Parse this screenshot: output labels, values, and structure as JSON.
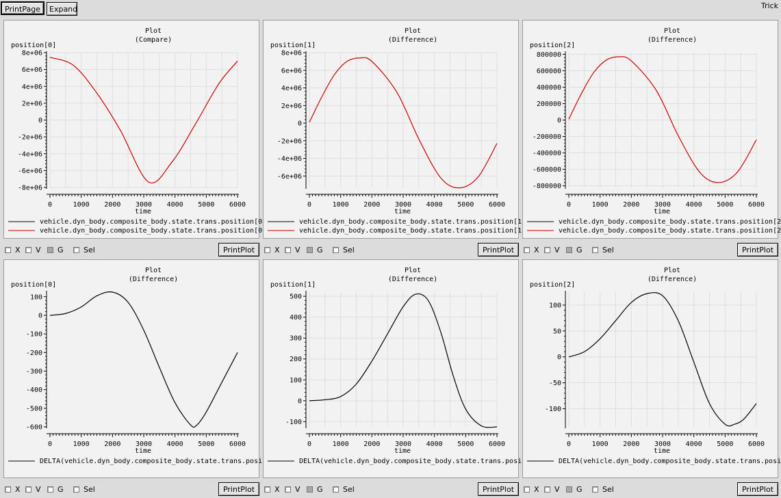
{
  "toolbar": {
    "print_page": "PrintPage",
    "expand": "Expand",
    "app_title": "Trick"
  },
  "controls": {
    "x": "X",
    "v": "V",
    "g": "G",
    "sel": "Sel",
    "print_plot": "PrintPlot"
  },
  "plots": [
    {
      "title": "Plot",
      "subtitle": "(Compare)",
      "ylabel": "position[0]",
      "xlabel": "time",
      "xlim": [
        0,
        6000
      ],
      "ylim": [
        -8000000,
        8000000
      ],
      "yticks": [
        -8000000,
        -6000000,
        -4000000,
        -2000000,
        0,
        2000000,
        4000000,
        6000000,
        8000000
      ],
      "ytick_labels": [
        "-8e+06",
        "-6e+06",
        "-4e+06",
        "-2e+06",
        "0",
        "2e+06",
        "4e+06",
        "6e+06",
        "8e+06"
      ],
      "legend": [
        {
          "label": "vehicle.dyn_body.composite_body.state.trans.position[0",
          "color": "#000000"
        },
        {
          "label": "vehicle.dyn_body.composite_body.state.trans.position[0",
          "color": "#cc0000"
        }
      ],
      "checks": {
        "x": false,
        "v": false,
        "g": true,
        "sel": false
      },
      "chart_data": {
        "type": "line",
        "x": [
          0,
          750,
          1500,
          2250,
          3150,
          3900,
          4650,
          5400,
          6000
        ],
        "series": [
          {
            "name": "vehicle.dyn_body.composite_body.state.trans.position[0",
            "color": "#cc0000",
            "values": [
              7450000,
              6500000,
              3200000,
              -1200000,
              -7350000,
              -5000000,
              -500000,
              4300000,
              7000000
            ]
          }
        ]
      }
    },
    {
      "title": "Plot",
      "subtitle": "(Difference)",
      "ylabel": "position[1]",
      "xlabel": "time",
      "xlim": [
        0,
        6000
      ],
      "ylim": [
        -7300000,
        8000000
      ],
      "yticks": [
        -6000000,
        -4000000,
        -2000000,
        0,
        2000000,
        4000000,
        6000000,
        8000000
      ],
      "ytick_labels": [
        "-6e+06",
        "-4e+06",
        "-2e+06",
        "0",
        "2e+06",
        "4e+06",
        "6e+06",
        "8e+06"
      ],
      "legend": [
        {
          "label": "vehicle.dyn_body.composite_body.state.trans.position[1",
          "color": "#000000"
        },
        {
          "label": "vehicle.dyn_body.composite_body.state.trans.position[1",
          "color": "#cc0000"
        }
      ],
      "checks": {
        "x": false,
        "v": false,
        "g": true,
        "sel": false
      },
      "chart_data": {
        "type": "line",
        "x": [
          0,
          400,
          800,
          1200,
          1600,
          2000,
          2800,
          3500,
          4200,
          4800,
          5400,
          6000
        ],
        "series": [
          {
            "name": "vehicle.dyn_body.composite_body.state.trans.position[1",
            "color": "#cc0000",
            "values": [
              100000,
              3000000,
              5500000,
              7000000,
              7400000,
              7000000,
              3500000,
              -1800000,
              -6200000,
              -7350000,
              -6100000,
              -2300000
            ]
          }
        ]
      }
    },
    {
      "title": "Plot",
      "subtitle": "(Difference)",
      "ylabel": "position[2]",
      "xlabel": "time",
      "xlim": [
        0,
        6000
      ],
      "ylim": [
        -820000,
        820000
      ],
      "yticks": [
        -800000,
        -600000,
        -400000,
        -200000,
        0,
        200000,
        400000,
        600000,
        800000
      ],
      "ytick_labels": [
        "-800000",
        "-600000",
        "-400000",
        "-200000",
        "0",
        "200000",
        "400000",
        "600000",
        "800000"
      ],
      "legend": [
        {
          "label": "vehicle.dyn_body.composite_body.state.trans.position[2",
          "color": "#000000"
        },
        {
          "label": "vehicle.dyn_body.composite_body.state.trans.position[2",
          "color": "#cc0000"
        }
      ],
      "checks": {
        "x": false,
        "v": false,
        "g": true,
        "sel": false
      },
      "chart_data": {
        "type": "line",
        "x": [
          0,
          400,
          800,
          1200,
          1600,
          2000,
          2800,
          3500,
          4200,
          4800,
          5400,
          6000
        ],
        "series": [
          {
            "name": "vehicle.dyn_body.composite_body.state.trans.position[2",
            "color": "#cc0000",
            "values": [
              10000,
              320000,
              580000,
              730000,
              770000,
              720000,
              360000,
              -190000,
              -640000,
              -760000,
              -630000,
              -240000
            ]
          }
        ]
      }
    },
    {
      "title": "Plot",
      "subtitle": "(Difference)",
      "ylabel": "position[0]",
      "xlabel": "time",
      "xlim": [
        0,
        6000
      ],
      "ylim": [
        -600,
        125
      ],
      "yticks": [
        -600,
        -500,
        -400,
        -300,
        -200,
        -100,
        0,
        100
      ],
      "ytick_labels": [
        "-600",
        "-500",
        "-400",
        "-300",
        "-200",
        "-100",
        "0",
        "100"
      ],
      "legend": [
        {
          "label": "DELTA(vehicle.dyn_body.composite_body.state.trans.posi",
          "color": "#000000"
        }
      ],
      "checks": {
        "x": false,
        "v": false,
        "g": false,
        "sel": false
      },
      "chart_data": {
        "type": "line",
        "x": [
          0,
          500,
          1000,
          1500,
          2000,
          2500,
          3000,
          3500,
          4000,
          4500,
          4700,
          5000,
          5500,
          6000
        ],
        "series": [
          {
            "name": "DELTA(vehicle.dyn_body.composite_body.state.trans.posi",
            "color": "#000000",
            "values": [
              0,
              10,
              45,
              105,
              125,
              70,
              -80,
              -280,
              -470,
              -590,
              -590,
              -520,
              -360,
              -200
            ]
          }
        ]
      }
    },
    {
      "title": "Plot",
      "subtitle": "(Difference)",
      "ylabel": "position[1]",
      "xlabel": "time",
      "xlim": [
        0,
        6000
      ],
      "ylim": [
        -125,
        520
      ],
      "yticks": [
        -100,
        0,
        100,
        200,
        300,
        400,
        500
      ],
      "ytick_labels": [
        "-100",
        "0",
        "100",
        "200",
        "300",
        "400",
        "500"
      ],
      "legend": [
        {
          "label": "DELTA(vehicle.dyn_body.composite_body.state.trans.posi",
          "color": "#000000"
        }
      ],
      "checks": {
        "x": false,
        "v": false,
        "g": true,
        "sel": false
      },
      "chart_data": {
        "type": "line",
        "x": [
          0,
          500,
          1000,
          1500,
          2000,
          2500,
          3000,
          3400,
          3800,
          4200,
          4600,
          5000,
          5500,
          6000
        ],
        "series": [
          {
            "name": "DELTA(vehicle.dyn_body.composite_body.state.trans.posi",
            "color": "#000000",
            "values": [
              0,
              5,
              20,
              80,
              190,
              320,
              450,
              510,
              480,
              330,
              120,
              -40,
              -120,
              -125
            ]
          }
        ]
      }
    },
    {
      "title": "Plot",
      "subtitle": "(Difference)",
      "ylabel": "position[2]",
      "xlabel": "time",
      "xlim": [
        0,
        6000
      ],
      "ylim": [
        -135,
        125
      ],
      "yticks": [
        -100,
        -50,
        0,
        50,
        100
      ],
      "ytick_labels": [
        "-100",
        "-50",
        "0",
        "50",
        "100"
      ],
      "legend": [
        {
          "label": "DELTA(vehicle.dyn_body.composite_body.state.trans.posi",
          "color": "#000000"
        }
      ],
      "checks": {
        "x": false,
        "v": false,
        "g": true,
        "sel": false
      },
      "chart_data": {
        "type": "line",
        "x": [
          0,
          500,
          1000,
          1500,
          2000,
          2500,
          3000,
          3500,
          4000,
          4500,
          5000,
          5300,
          5600,
          6000
        ],
        "series": [
          {
            "name": "DELTA(vehicle.dyn_body.composite_body.state.trans.posi",
            "color": "#000000",
            "values": [
              0,
              10,
              35,
              70,
              105,
              122,
              118,
              70,
              -10,
              -90,
              -130,
              -130,
              -120,
              -90
            ]
          }
        ]
      }
    }
  ]
}
